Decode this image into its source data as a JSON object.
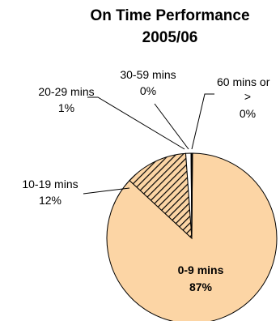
{
  "chart_data": {
    "type": "pie",
    "title_lines": [
      "On Time Performance",
      "2005/06"
    ],
    "slices": [
      {
        "label": "0-9 mins",
        "percent_label": "87%",
        "value": 87,
        "color": "#fcd5a5",
        "pattern": "none"
      },
      {
        "label": "10-19 mins",
        "percent_label": "12%",
        "value": 12,
        "color": "#fcd5a5",
        "pattern": "diagonal-hatch"
      },
      {
        "label": "20-29 mins",
        "percent_label": "1%",
        "value": 1,
        "color": "#ffffff",
        "pattern": "none"
      },
      {
        "label": "30-59 mins",
        "percent_label": "0%",
        "value": 0,
        "color": "#ffffff",
        "pattern": "none"
      },
      {
        "label": "60 mins or",
        "label_line2": ">",
        "percent_label": "0%",
        "value": 0,
        "color": "#ffffff",
        "pattern": "none"
      }
    ],
    "legend": "none",
    "outline_color": "#000000"
  }
}
